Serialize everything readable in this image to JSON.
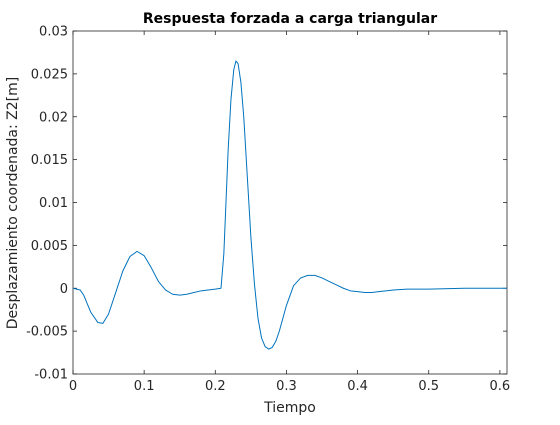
{
  "chart_data": {
    "type": "line",
    "title": "Respuesta forzada a carga triangular",
    "xlabel": "Tiempo",
    "ylabel": "Desplazamiento coordenada: Z2[m]",
    "xlim": [
      0,
      0.61
    ],
    "ylim": [
      -0.01,
      0.03
    ],
    "x_ticks": [
      0,
      0.1,
      0.2,
      0.3,
      0.4,
      0.5,
      0.6
    ],
    "x_tick_labels": [
      "0",
      "0.1",
      "0.2",
      "0.3",
      "0.4",
      "0.5",
      "0.6"
    ],
    "y_ticks": [
      -0.01,
      -0.005,
      0,
      0.005,
      0.01,
      0.015,
      0.02,
      0.025,
      0.03
    ],
    "y_tick_labels": [
      "-0.01",
      "-0.005",
      "0",
      "0.005",
      "0.01",
      "0.015",
      "0.02",
      "0.025",
      "0.03"
    ],
    "grid": false,
    "line_color": "#0072BD",
    "series": [
      {
        "x": [
          0,
          0.01,
          0.015,
          0.025,
          0.035,
          0.042,
          0.05,
          0.06,
          0.07,
          0.08,
          0.09,
          0.1,
          0.11,
          0.12,
          0.13,
          0.14,
          0.15,
          0.16,
          0.17,
          0.18,
          0.19,
          0.2,
          0.208,
          0.212,
          0.215,
          0.218,
          0.222,
          0.226,
          0.229,
          0.232,
          0.236,
          0.24,
          0.245,
          0.25,
          0.255,
          0.26,
          0.265,
          0.27,
          0.275,
          0.28,
          0.285,
          0.29,
          0.295,
          0.3,
          0.31,
          0.32,
          0.33,
          0.34,
          0.35,
          0.36,
          0.37,
          0.38,
          0.39,
          0.4,
          0.41,
          0.42,
          0.43,
          0.44,
          0.45,
          0.47,
          0.5,
          0.55,
          0.61
        ],
        "y": [
          0,
          -0.0002,
          -0.0008,
          -0.0028,
          -0.004,
          -0.0041,
          -0.003,
          -0.0005,
          0.002,
          0.0037,
          0.0043,
          0.0038,
          0.0024,
          0.0008,
          -0.0002,
          -0.0007,
          -0.0008,
          -0.0007,
          -0.0005,
          -0.0003,
          -0.0002,
          -0.0001,
          0.0,
          0.004,
          0.01,
          0.016,
          0.022,
          0.0255,
          0.0265,
          0.0262,
          0.024,
          0.02,
          0.013,
          0.006,
          0.0005,
          -0.0035,
          -0.0058,
          -0.0068,
          -0.0071,
          -0.0069,
          -0.0062,
          -0.005,
          -0.0035,
          -0.002,
          0.0003,
          0.0012,
          0.0015,
          0.0015,
          0.0012,
          0.0008,
          0.0004,
          0.0,
          -0.0003,
          -0.0004,
          -0.0005,
          -0.0005,
          -0.0004,
          -0.0003,
          -0.0002,
          -0.0001,
          -0.0001,
          0.0,
          0.0
        ]
      }
    ]
  }
}
